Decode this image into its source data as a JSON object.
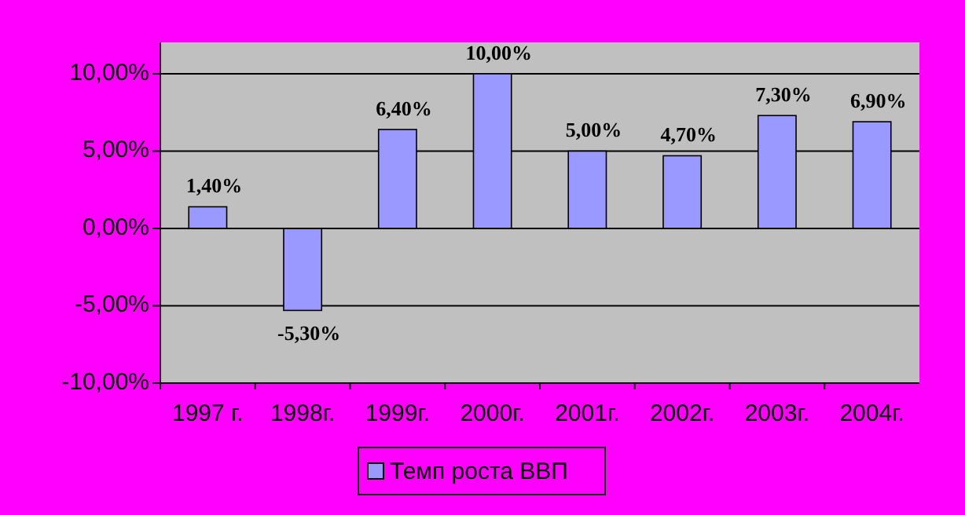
{
  "chart_data": {
    "type": "bar",
    "categories": [
      "1997 г.",
      "1998г.",
      "1999г.",
      "2000г.",
      "2001г.",
      "2002г.",
      "2003г.",
      "2004г."
    ],
    "series": [
      {
        "name": "Темп роста ВВП",
        "color": "#9999ff",
        "values": [
          1.4,
          -5.3,
          6.4,
          10,
          5,
          4.7,
          7.3,
          6.9
        ],
        "value_labels": [
          "1,40%",
          "-5,30%",
          "6,40%",
          "10,00%",
          "5,00%",
          "4,70%",
          "7,30%",
          "6,90%"
        ]
      }
    ],
    "ylim": [
      -10,
      10
    ],
    "yticks": [
      {
        "value": -10,
        "label": "-10,00%"
      },
      {
        "value": -5,
        "label": "-5,00%"
      },
      {
        "value": 0,
        "label": "0,00%"
      },
      {
        "value": 5,
        "label": "5,00%"
      },
      {
        "value": 10,
        "label": "10,00%"
      }
    ],
    "grid": "y",
    "legend": "bottom"
  }
}
